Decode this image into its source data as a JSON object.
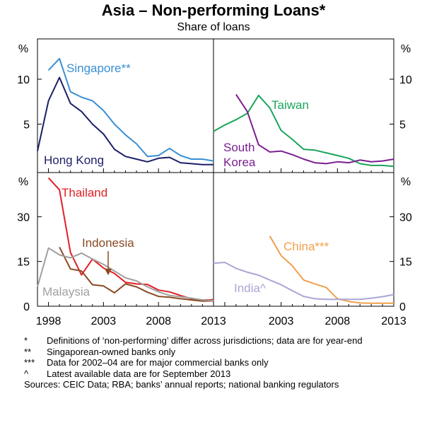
{
  "title": "Asia – Non-performing Loans*",
  "subtitle": "Share of loans",
  "chart_data": [
    {
      "type": "line",
      "panel": "top-left",
      "ylabel": "%",
      "ylim": [
        0,
        15
      ],
      "yticks": [
        "5",
        "10"
      ],
      "x_range": [
        1997,
        2013
      ],
      "series": [
        {
          "name": "Singapore**",
          "color": "#3a8fd3",
          "x": [
            1998,
            1999,
            2000,
            2001,
            2002,
            2003,
            2004,
            2005,
            2006,
            2007,
            2008,
            2009,
            2010,
            2011,
            2012,
            2013
          ],
          "values": [
            11.0,
            12.3,
            8.6,
            8.0,
            7.6,
            6.5,
            5.0,
            3.8,
            2.8,
            1.4,
            1.5,
            2.3,
            1.5,
            1.1,
            1.1,
            0.9
          ]
        },
        {
          "name": "Hong Kong",
          "color": "#1c2066",
          "x": [
            1997,
            1998,
            1999,
            2000,
            2001,
            2002,
            2003,
            2004,
            2005,
            2006,
            2007,
            2008,
            2009,
            2010,
            2011,
            2012,
            2013
          ],
          "values": [
            2.0,
            7.6,
            10.2,
            7.3,
            6.4,
            5.0,
            3.9,
            2.2,
            1.4,
            1.1,
            0.8,
            1.2,
            1.3,
            0.7,
            0.6,
            0.5,
            0.5
          ]
        }
      ]
    },
    {
      "type": "line",
      "panel": "top-right",
      "ylabel": "%",
      "ylim": [
        0,
        15
      ],
      "yticks": [
        "5",
        "10"
      ],
      "x_range": [
        1997,
        2013
      ],
      "series": [
        {
          "name": "Taiwan",
          "color": "#1aa55b",
          "x": [
            1997,
            1998,
            1999,
            2000,
            2001,
            2002,
            2003,
            2004,
            2005,
            2006,
            2007,
            2008,
            2009,
            2010,
            2011,
            2012,
            2013
          ],
          "values": [
            4.2,
            4.9,
            5.5,
            6.2,
            8.2,
            6.8,
            4.3,
            3.3,
            2.2,
            2.1,
            1.8,
            1.5,
            1.2,
            0.6,
            0.4,
            0.4,
            0.3
          ]
        },
        {
          "name": "South Korea",
          "color": "#7b1f91",
          "x": [
            1999,
            2000,
            2001,
            2002,
            2003,
            2004,
            2005,
            2006,
            2007,
            2008,
            2009,
            2010,
            2011,
            2012,
            2013
          ],
          "values": [
            8.3,
            6.4,
            2.7,
            1.9,
            2.0,
            1.6,
            1.1,
            0.7,
            0.6,
            0.8,
            0.7,
            1.0,
            0.8,
            0.9,
            1.1
          ]
        }
      ]
    },
    {
      "type": "line",
      "panel": "bottom-left",
      "ylabel": "%",
      "ylim": [
        0,
        45
      ],
      "yticks": [
        "15",
        "30"
      ],
      "x_range": [
        1997,
        2013
      ],
      "xticks": [
        "1998",
        "2003",
        "2008",
        "2013"
      ],
      "series": [
        {
          "name": "Thailand",
          "color": "#e41e26",
          "x": [
            1998,
            1999,
            2000,
            2001,
            2002,
            2003,
            2004,
            2005,
            2006,
            2007,
            2008,
            2009,
            2010,
            2011,
            2012,
            2013
          ],
          "values": [
            43.0,
            39.0,
            18.0,
            10.5,
            15.8,
            12.8,
            11.0,
            8.0,
            7.5,
            7.3,
            5.4,
            4.8,
            3.6,
            2.5,
            2.1,
            2.2
          ]
        },
        {
          "name": "Indonesia",
          "color": "#8b4a22",
          "x": [
            1999,
            2000,
            2001,
            2002,
            2003,
            2004,
            2005,
            2006,
            2007,
            2008,
            2009,
            2010,
            2011,
            2012,
            2013
          ],
          "values": [
            19.8,
            12.5,
            11.8,
            7.2,
            6.8,
            4.5,
            7.5,
            6.5,
            4.7,
            3.3,
            3.0,
            2.5,
            2.1,
            1.7,
            1.8
          ]
        },
        {
          "name": "Malaysia",
          "color": "#a0a0a0",
          "x": [
            1997,
            1998,
            1999,
            2000,
            2001,
            2002,
            2003,
            2004,
            2005,
            2006,
            2007,
            2008,
            2009,
            2010,
            2011,
            2012,
            2013
          ],
          "values": [
            6.5,
            19.5,
            17.2,
            16.2,
            17.8,
            15.8,
            14.0,
            11.8,
            9.5,
            8.5,
            6.5,
            4.8,
            3.6,
            3.2,
            2.7,
            2.1,
            1.9
          ]
        }
      ]
    },
    {
      "type": "line",
      "panel": "bottom-right",
      "ylabel": "%",
      "ylim": [
        0,
        45
      ],
      "yticks": [
        "15",
        "30"
      ],
      "x_range": [
        1997,
        2013
      ],
      "xticks": [
        "2003",
        "2008",
        "2013"
      ],
      "series": [
        {
          "name": "China***",
          "color": "#f0a04b",
          "x": [
            2002,
            2003,
            2004,
            2005,
            2006,
            2007,
            2008,
            2009,
            2010,
            2011,
            2012,
            2013
          ],
          "values": [
            23.5,
            17.0,
            13.5,
            8.8,
            7.5,
            6.3,
            2.5,
            1.6,
            1.1,
            1.0,
            1.0,
            1.0
          ]
        },
        {
          "name": "India^",
          "color": "#a9a6d4",
          "x": [
            1997,
            1998,
            1999,
            2000,
            2001,
            2002,
            2003,
            2004,
            2005,
            2006,
            2007,
            2008,
            2009,
            2010,
            2011,
            2012,
            2013
          ],
          "values": [
            14.4,
            14.7,
            12.7,
            11.4,
            10.4,
            8.8,
            7.2,
            5.2,
            3.3,
            2.5,
            2.3,
            2.3,
            2.3,
            2.3,
            2.7,
            3.2,
            3.9
          ]
        }
      ]
    }
  ],
  "notes": [
    {
      "marker": "*",
      "text": "Definitions of ‘non-performing’ differ across jurisdictions; data are for year-end"
    },
    {
      "marker": "**",
      "text": "Singaporean-owned banks only"
    },
    {
      "marker": "***",
      "text": "Data for 2002–04 are for major commercial banks only"
    },
    {
      "marker": "^",
      "text": "Latest available data are for September 2013"
    }
  ],
  "sources": "Sources: CEIC Data; RBA; banks’ annual reports; national banking regulators"
}
